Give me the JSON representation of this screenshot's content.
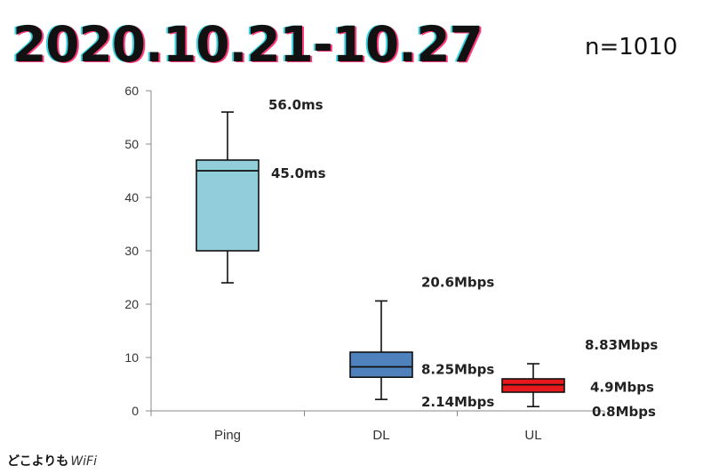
{
  "header": {
    "title": "2020.10.21-10.27",
    "sample_size": "n=1010"
  },
  "logo": {
    "brand": "どこよりも",
    "suffix": "WiFi"
  },
  "chart_data": {
    "type": "box",
    "title": "2020.10.21-10.27",
    "xlabel": "",
    "ylabel": "",
    "ylim": [
      0,
      60
    ],
    "yticks": [
      0,
      10,
      20,
      30,
      40,
      50,
      60
    ],
    "grid": false,
    "categories": [
      "Ping",
      "DL",
      "UL"
    ],
    "boxes": [
      {
        "category": "Ping",
        "min": 24,
        "q1": 30,
        "median": 45.0,
        "q3": 47,
        "max": 56.0,
        "color": "#92cddc",
        "labels": {
          "max": "56.0ms",
          "median": "45.0ms"
        }
      },
      {
        "category": "DL",
        "min": 2.14,
        "q1": 6.3,
        "median": 8.25,
        "q3": 11,
        "max": 20.6,
        "color": "#4f81bd",
        "labels": {
          "max": "20.6Mbps",
          "median": "8.25Mbps",
          "min": "2.14Mbps"
        }
      },
      {
        "category": "UL",
        "min": 0.8,
        "q1": 3.5,
        "median": 4.9,
        "q3": 6,
        "max": 8.83,
        "color": "#e8191c",
        "labels": {
          "max": "8.83Mbps",
          "median": "4.9Mbps",
          "min": "0.8Mbps"
        }
      }
    ]
  }
}
